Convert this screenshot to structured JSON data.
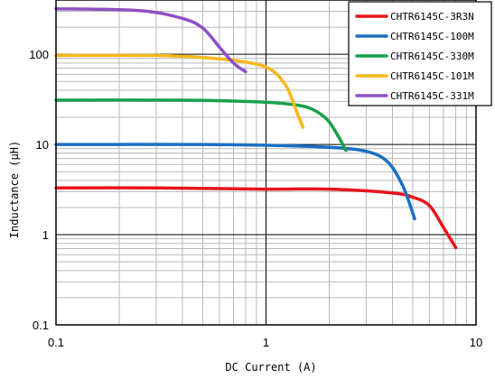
{
  "chart_data": {
    "type": "line",
    "xscale": "log",
    "yscale": "log",
    "xlim": [
      0.1,
      10
    ],
    "ylim": [
      0.1,
      400
    ],
    "xlabel": "DC Current (A)",
    "ylabel": "Inductance (μH)",
    "grid": true,
    "legend_position": "top-right",
    "x_ticks": [
      {
        "value": 0.1,
        "label": "0.1"
      },
      {
        "value": 1,
        "label": "1"
      },
      {
        "value": 10,
        "label": "10"
      }
    ],
    "y_ticks": [
      {
        "value": 0.1,
        "label": "0.1"
      },
      {
        "value": 1,
        "label": "1"
      },
      {
        "value": 10,
        "label": "10"
      },
      {
        "value": 100,
        "label": "100"
      }
    ],
    "series": [
      {
        "name": "CHTR6145C-3R3N",
        "color": "#e8141c",
        "points": [
          [
            0.1,
            3.3
          ],
          [
            0.3,
            3.3
          ],
          [
            1.0,
            3.2
          ],
          [
            2.0,
            3.2
          ],
          [
            4.0,
            2.9
          ],
          [
            5.0,
            2.6
          ],
          [
            6.0,
            2.1
          ],
          [
            7.0,
            1.2
          ],
          [
            8.0,
            0.72
          ]
        ]
      },
      {
        "name": "CHTR6145C-100M",
        "color": "#1b6fc2",
        "points": [
          [
            0.1,
            10
          ],
          [
            0.5,
            10
          ],
          [
            1.0,
            9.8
          ],
          [
            2.0,
            9.3
          ],
          [
            3.0,
            8.4
          ],
          [
            3.8,
            6.4
          ],
          [
            4.5,
            3.4
          ],
          [
            5.1,
            1.5
          ]
        ]
      },
      {
        "name": "CHTR6145C-330M",
        "color": "#19a14b",
        "points": [
          [
            0.1,
            31
          ],
          [
            0.4,
            31
          ],
          [
            0.8,
            30
          ],
          [
            1.2,
            28.5
          ],
          [
            1.6,
            25.5
          ],
          [
            1.95,
            19
          ],
          [
            2.2,
            12.5
          ],
          [
            2.4,
            8.6
          ]
        ]
      },
      {
        "name": "CHTR6145C-101M",
        "color": "#f6b81a",
        "points": [
          [
            0.1,
            97
          ],
          [
            0.3,
            97
          ],
          [
            0.5,
            92
          ],
          [
            0.8,
            82
          ],
          [
            1.05,
            68
          ],
          [
            1.25,
            44
          ],
          [
            1.4,
            23
          ],
          [
            1.5,
            15.5
          ]
        ]
      },
      {
        "name": "CHTR6145C-331M",
        "color": "#8f4fc4",
        "points": [
          [
            0.1,
            320
          ],
          [
            0.25,
            305
          ],
          [
            0.4,
            250
          ],
          [
            0.5,
            195
          ],
          [
            0.6,
            120
          ],
          [
            0.7,
            80
          ],
          [
            0.8,
            64
          ]
        ]
      }
    ]
  }
}
